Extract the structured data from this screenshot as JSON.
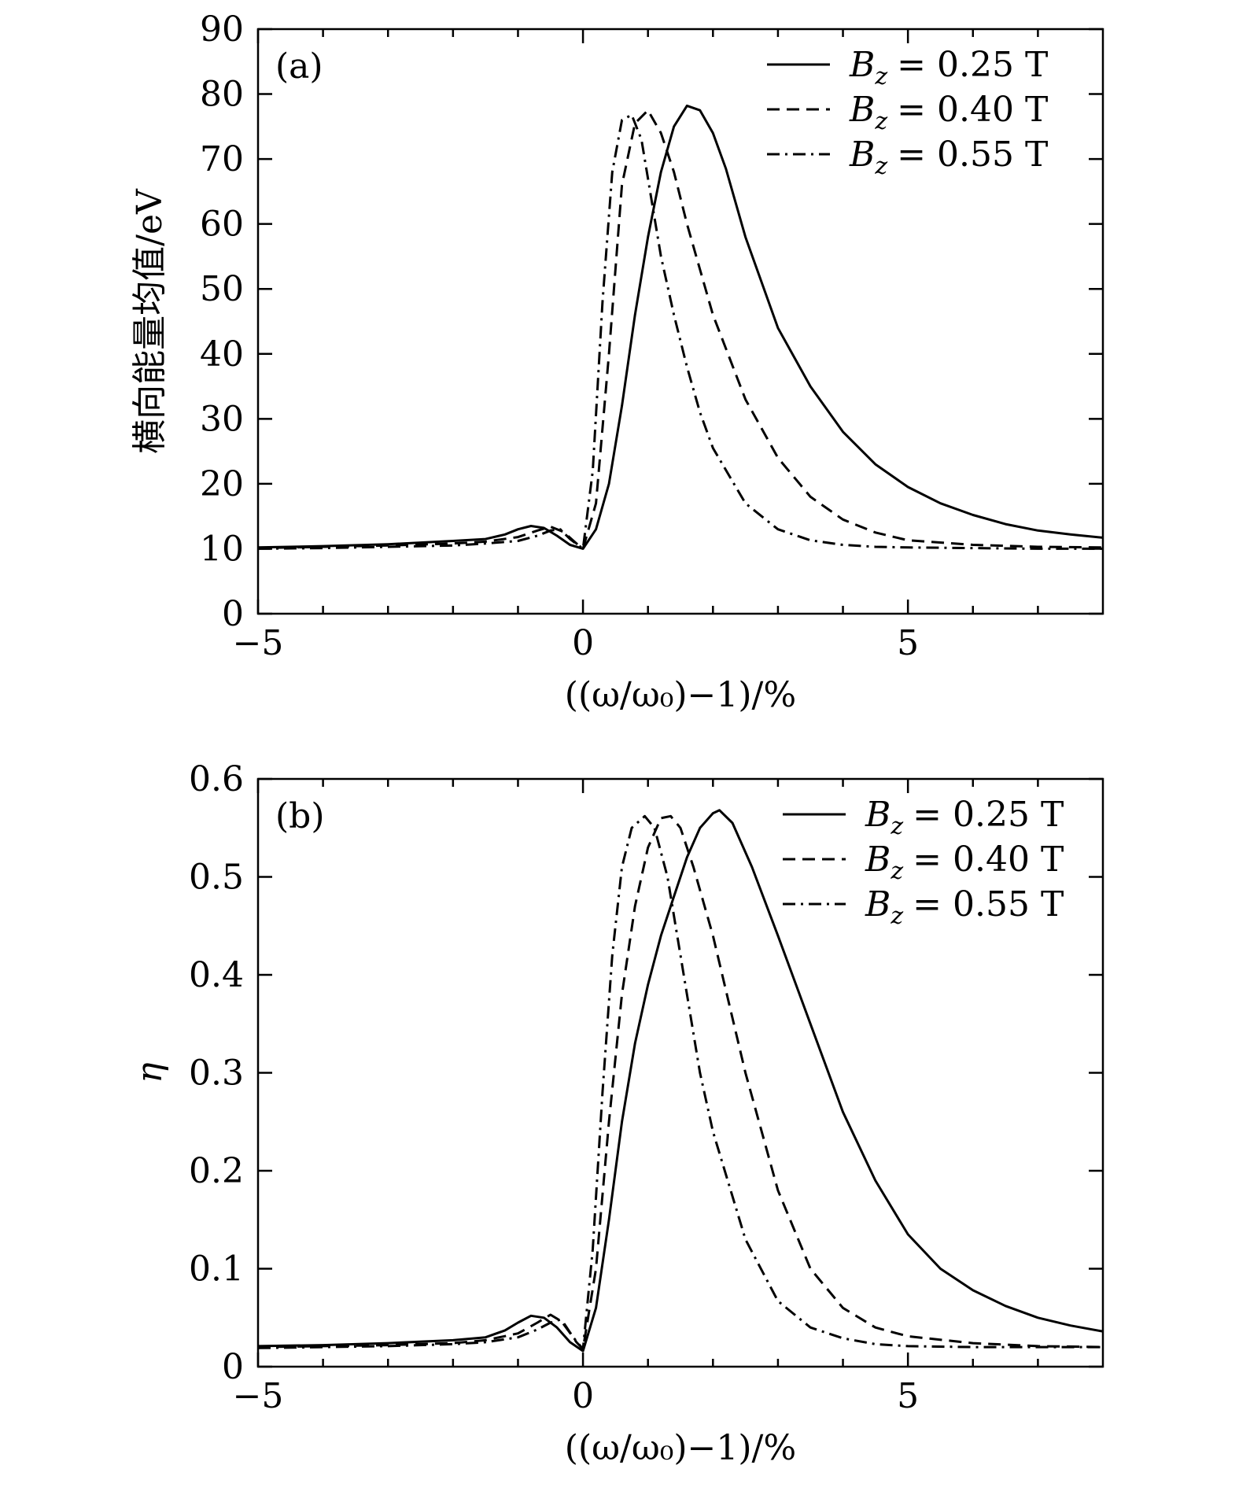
{
  "chart_data": [
    {
      "type": "line",
      "panel_label": "(a)",
      "xlabel": "((ω/ω₀)−1)/%",
      "ylabel": "横向能量均值/eV",
      "xlim": [
        -5,
        8
      ],
      "ylim": [
        0,
        90
      ],
      "xticks": [
        -5,
        0,
        5
      ],
      "xtick_labels": [
        "−5",
        "0",
        "5"
      ],
      "xminor": [
        -4,
        -3,
        -2,
        -1,
        1,
        2,
        3,
        4,
        6,
        7
      ],
      "yticks": [
        0,
        10,
        20,
        30,
        40,
        50,
        60,
        70,
        80,
        90
      ],
      "ytick_labels": [
        "0",
        "10",
        "20",
        "30",
        "40",
        "50",
        "60",
        "70",
        "80",
        "90"
      ],
      "grid": false,
      "legend_position": "top-right",
      "series": [
        {
          "name": "B_z = 0.25 T",
          "style": "solid",
          "x": [
            -5,
            -4,
            -3,
            -2,
            -1.5,
            -1.2,
            -1,
            -0.8,
            -0.6,
            -0.4,
            -0.2,
            0,
            0.2,
            0.4,
            0.6,
            0.8,
            1.0,
            1.2,
            1.4,
            1.6,
            1.8,
            2.0,
            2.2,
            2.5,
            3.0,
            3.5,
            4.0,
            4.5,
            5.0,
            5.5,
            6.0,
            6.5,
            7.0,
            7.5,
            8.0
          ],
          "y": [
            10.2,
            10.4,
            10.7,
            11.2,
            11.5,
            12.2,
            13.0,
            13.5,
            13.2,
            12.0,
            10.6,
            10.0,
            13.0,
            20.0,
            32.0,
            46.0,
            58.0,
            68.0,
            75.0,
            78.2,
            77.5,
            74.0,
            68.5,
            58.0,
            44.0,
            35.0,
            28.0,
            23.0,
            19.5,
            17.0,
            15.2,
            13.8,
            12.8,
            12.2,
            11.7
          ]
        },
        {
          "name": "B_z = 0.40 T",
          "style": "dashed",
          "x": [
            -5,
            -4,
            -3,
            -2,
            -1.5,
            -1,
            -0.7,
            -0.5,
            -0.3,
            -0.1,
            0,
            0.2,
            0.4,
            0.6,
            0.8,
            1.0,
            1.2,
            1.4,
            1.6,
            1.8,
            2.0,
            2.5,
            3.0,
            3.5,
            4.0,
            4.5,
            5.0,
            6.0,
            7.0,
            8.0
          ],
          "y": [
            10.1,
            10.3,
            10.5,
            10.8,
            11.1,
            11.8,
            12.8,
            13.4,
            12.6,
            10.8,
            10.0,
            17.0,
            40.0,
            66.0,
            75.5,
            77.5,
            74.0,
            68.0,
            60.0,
            53.0,
            46.0,
            33.0,
            24.0,
            18.0,
            14.5,
            12.5,
            11.3,
            10.6,
            10.3,
            10.2
          ]
        },
        {
          "name": "B_z = 0.55 T",
          "style": "dashdot",
          "x": [
            -5,
            -4,
            -3,
            -2,
            -1.5,
            -1,
            -0.7,
            -0.5,
            -0.35,
            -0.2,
            0,
            0.15,
            0.3,
            0.45,
            0.6,
            0.75,
            0.9,
            1.05,
            1.2,
            1.4,
            1.6,
            1.8,
            2.0,
            2.5,
            3.0,
            3.5,
            4.0,
            4.5,
            5.0,
            6.0,
            7.0,
            8.0
          ],
          "y": [
            10.0,
            10.1,
            10.3,
            10.5,
            10.8,
            11.2,
            12.0,
            12.8,
            13.0,
            11.5,
            10.0,
            22.0,
            48.0,
            68.0,
            76.0,
            76.8,
            73.0,
            64.0,
            55.0,
            46.0,
            38.0,
            31.0,
            25.5,
            17.0,
            13.0,
            11.3,
            10.6,
            10.3,
            10.2,
            10.1,
            10.0,
            10.0
          ]
        }
      ]
    },
    {
      "type": "line",
      "panel_label": "(b)",
      "xlabel": "((ω/ω₀)−1)/%",
      "ylabel": "η",
      "xlim": [
        -5,
        8
      ],
      "ylim": [
        0,
        0.6
      ],
      "xticks": [
        -5,
        0,
        5
      ],
      "xtick_labels": [
        "−5",
        "0",
        "5"
      ],
      "xminor": [
        -4,
        -3,
        -2,
        -1,
        1,
        2,
        3,
        4,
        6,
        7
      ],
      "yticks": [
        0,
        0.1,
        0.2,
        0.3,
        0.4,
        0.5,
        0.6
      ],
      "ytick_labels": [
        "0",
        "0.1",
        "0.2",
        "0.3",
        "0.4",
        "0.5",
        "0.6"
      ],
      "grid": false,
      "legend_position": "top-right",
      "series": [
        {
          "name": "B_z = 0.25 T",
          "style": "solid",
          "x": [
            -5,
            -4,
            -3,
            -2,
            -1.5,
            -1.2,
            -1,
            -0.8,
            -0.6,
            -0.4,
            -0.2,
            0,
            0.2,
            0.4,
            0.6,
            0.8,
            1.0,
            1.2,
            1.4,
            1.6,
            1.8,
            2.0,
            2.1,
            2.3,
            2.6,
            3.0,
            3.5,
            4.0,
            4.5,
            5.0,
            5.5,
            6.0,
            6.5,
            7.0,
            7.5,
            8.0
          ],
          "y": [
            0.021,
            0.022,
            0.024,
            0.027,
            0.03,
            0.037,
            0.045,
            0.052,
            0.05,
            0.04,
            0.025,
            0.016,
            0.06,
            0.15,
            0.25,
            0.33,
            0.39,
            0.44,
            0.48,
            0.52,
            0.55,
            0.565,
            0.568,
            0.555,
            0.51,
            0.44,
            0.35,
            0.26,
            0.19,
            0.135,
            0.1,
            0.078,
            0.062,
            0.05,
            0.042,
            0.036
          ]
        },
        {
          "name": "B_z = 0.40 T",
          "style": "dashed",
          "x": [
            -5,
            -4,
            -3,
            -2,
            -1.5,
            -1,
            -0.7,
            -0.5,
            -0.3,
            -0.1,
            0,
            0.2,
            0.4,
            0.6,
            0.8,
            1.0,
            1.2,
            1.35,
            1.5,
            1.7,
            2.0,
            2.5,
            3.0,
            3.5,
            4.0,
            4.5,
            5.0,
            6.0,
            7.0,
            8.0
          ],
          "y": [
            0.02,
            0.021,
            0.022,
            0.024,
            0.027,
            0.034,
            0.045,
            0.053,
            0.045,
            0.025,
            0.018,
            0.1,
            0.25,
            0.38,
            0.47,
            0.53,
            0.56,
            0.562,
            0.55,
            0.51,
            0.44,
            0.3,
            0.18,
            0.1,
            0.06,
            0.04,
            0.031,
            0.024,
            0.021,
            0.02
          ]
        },
        {
          "name": "B_z = 0.55 T",
          "style": "dashdot",
          "x": [
            -5,
            -4,
            -3,
            -2,
            -1.5,
            -1,
            -0.7,
            -0.5,
            -0.35,
            -0.15,
            0,
            0.15,
            0.3,
            0.45,
            0.6,
            0.75,
            0.95,
            1.1,
            1.3,
            1.5,
            1.8,
            2.0,
            2.5,
            3.0,
            3.5,
            4.0,
            4.5,
            5.0,
            6.0,
            7.0,
            8.0
          ],
          "y": [
            0.019,
            0.02,
            0.021,
            0.023,
            0.025,
            0.03,
            0.038,
            0.045,
            0.048,
            0.03,
            0.018,
            0.12,
            0.28,
            0.42,
            0.51,
            0.55,
            0.562,
            0.55,
            0.5,
            0.42,
            0.3,
            0.24,
            0.13,
            0.067,
            0.04,
            0.029,
            0.023,
            0.021,
            0.02,
            0.02,
            0.02
          ]
        }
      ]
    }
  ]
}
